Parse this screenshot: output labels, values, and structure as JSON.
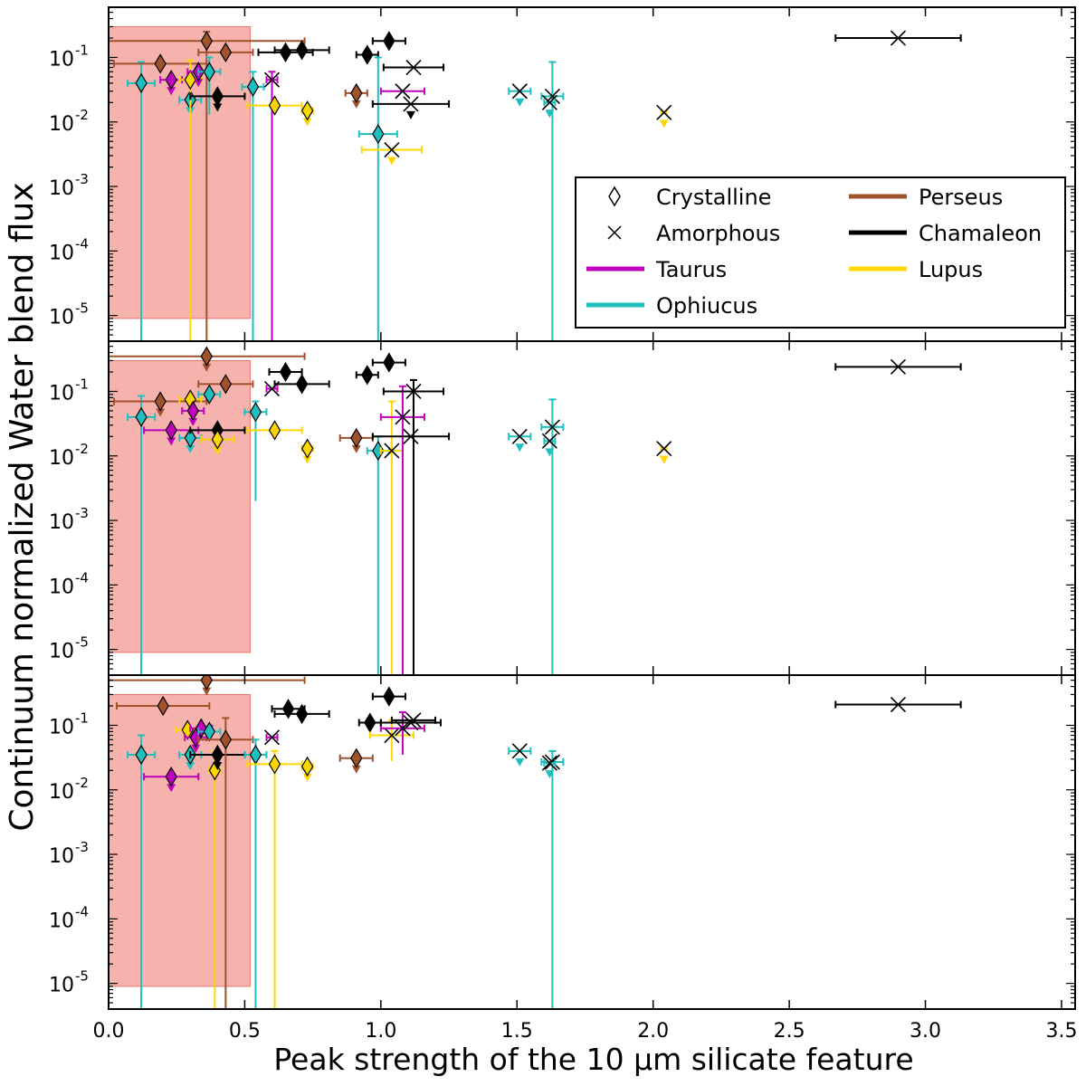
{
  "chart_data": {
    "type": "scatter",
    "xlabel": "Peak strength of the 10 μm silicate feature",
    "ylabel": "Continuum normalized Water blend flux",
    "xlim": [
      0,
      3.55
    ],
    "ylim": [
      4e-06,
      0.6
    ],
    "yscale": "log",
    "x_ticks": [
      0.0,
      0.5,
      1.0,
      1.5,
      2.0,
      2.5,
      3.0,
      3.5
    ],
    "x_tick_labels": [
      "0.0",
      "0.5",
      "1.0",
      "1.5",
      "2.0",
      "2.5",
      "3.0",
      "3.5"
    ],
    "y_ticks": [
      1e-05,
      0.0001,
      0.001,
      0.01,
      0.1
    ],
    "y_tick_labels": [
      "10",
      "10",
      "10",
      "10",
      "10"
    ],
    "y_tick_exponents": [
      "-5",
      "-4",
      "-3",
      "-2",
      "-1"
    ],
    "legend": {
      "placement": "right",
      "entries": [
        {
          "label": "Crystalline",
          "marker": "diamond"
        },
        {
          "label": "Perseus",
          "color": "#a0522d"
        },
        {
          "label": "Amorphous",
          "marker": "x"
        },
        {
          "label": "Chamaleon",
          "color": "#000000"
        },
        {
          "label": "Taurus",
          "color": "#bf00bf"
        },
        {
          "label": "Lupus",
          "color": "#ffd700"
        },
        {
          "label": "Ophiucus",
          "color": "#1fbfbf"
        }
      ]
    },
    "colors": {
      "Perseus": "#a0522d",
      "Chamaleon": "#000000",
      "Taurus": "#bf00bf",
      "Lupus": "#ffd700",
      "Ophiucus": "#1fbfbf",
      "shaded_region": "#f4a09a"
    },
    "shaded_region": {
      "x": [
        0,
        0.52
      ],
      "y": [
        9e-06,
        0.3
      ]
    },
    "panels": [
      {
        "points": [
          {
            "region": "Ophiucus",
            "marker": "diamond",
            "x": 0.12,
            "y": 0.04,
            "xerr": 0.05,
            "ylo": 4e-06,
            "yhi": 0.085,
            "upper": false
          },
          {
            "region": "Perseus",
            "marker": "diamond",
            "x": 0.19,
            "y": 0.08,
            "xerr": 0.17,
            "upper": false
          },
          {
            "region": "Taurus",
            "marker": "diamond",
            "x": 0.23,
            "y": 0.045,
            "xerr": 0.04,
            "upper": true
          },
          {
            "region": "Ophiucus",
            "marker": "diamond",
            "x": 0.3,
            "y": 0.022,
            "xerr": 0.04,
            "upper": true
          },
          {
            "region": "Lupus",
            "marker": "diamond",
            "x": 0.3,
            "y": 0.045,
            "xerr": 0.04,
            "ylo": 4e-06,
            "yhi": 0.09,
            "upper": false
          },
          {
            "region": "Taurus",
            "marker": "diamond",
            "x": 0.33,
            "y": 0.06,
            "xerr": 0.04,
            "upper": true
          },
          {
            "region": "Perseus",
            "marker": "diamond",
            "x": 0.36,
            "y": 0.18,
            "xerr": 0.36,
            "ylo": 4e-06,
            "yhi": 0.25,
            "upper": false
          },
          {
            "region": "Ophiucus",
            "marker": "diamond",
            "x": 0.37,
            "y": 0.06,
            "xerr": 0.04,
            "ylo": 0.013,
            "yhi": 0.1,
            "upper": false
          },
          {
            "region": "Chamaleon",
            "marker": "diamond",
            "x": 0.4,
            "y": 0.025,
            "xerr": 0.1,
            "upper": true
          },
          {
            "region": "Perseus",
            "marker": "diamond",
            "x": 0.43,
            "y": 0.12,
            "xerr": 0.1,
            "upper": false
          },
          {
            "region": "Ophiucus",
            "marker": "diamond",
            "x": 0.53,
            "y": 0.035,
            "xerr": 0.04,
            "ylo": 4e-06,
            "yhi": 0.06,
            "upper": false
          },
          {
            "region": "Taurus",
            "marker": "x",
            "x": 0.6,
            "y": 0.045,
            "xerr": 0.02,
            "ylo": 4e-06,
            "yhi": 0.06,
            "upper": false
          },
          {
            "region": "Lupus",
            "marker": "diamond",
            "x": 0.61,
            "y": 0.018,
            "xerr": 0.1,
            "upper": false
          },
          {
            "region": "Chamaleon",
            "marker": "diamond",
            "x": 0.65,
            "y": 0.12,
            "xerr": 0.1,
            "upper": false
          },
          {
            "region": "Chamaleon",
            "marker": "diamond",
            "x": 0.71,
            "y": 0.13,
            "xerr": 0.1,
            "upper": false
          },
          {
            "region": "Lupus",
            "marker": "diamond",
            "x": 0.73,
            "y": 0.015,
            "xerr": 0.02,
            "upper": true
          },
          {
            "region": "Perseus",
            "marker": "diamond",
            "x": 0.91,
            "y": 0.028,
            "xerr": 0.04,
            "upper": true
          },
          {
            "region": "Chamaleon",
            "marker": "diamond",
            "x": 0.95,
            "y": 0.11,
            "xerr": 0.04,
            "upper": false
          },
          {
            "region": "Ophiucus",
            "marker": "diamond",
            "x": 0.99,
            "y": 0.0065,
            "xerr": 0.07,
            "ylo": 4e-06,
            "yhi": 0.1,
            "upper": false
          },
          {
            "region": "Chamaleon",
            "marker": "diamond",
            "x": 1.03,
            "y": 0.18,
            "xerr": 0.06,
            "upper": false
          },
          {
            "region": "Lupus",
            "marker": "x",
            "x": 1.04,
            "y": 0.0037,
            "xerr": 0.11,
            "upper": true
          },
          {
            "region": "Taurus",
            "marker": "x",
            "x": 1.08,
            "y": 0.03,
            "xerr": 0.08,
            "upper": false
          },
          {
            "region": "Chamaleon",
            "marker": "x",
            "x": 1.12,
            "y": 0.07,
            "xerr": 0.11,
            "upper": false
          },
          {
            "region": "Chamaleon",
            "marker": "x",
            "x": 1.11,
            "y": 0.019,
            "xerr": 0.14,
            "upper": true
          },
          {
            "region": "Ophiucus",
            "marker": "x",
            "x": 1.51,
            "y": 0.03,
            "xerr": 0.04,
            "upper": true
          },
          {
            "region": "Ophiucus",
            "marker": "x",
            "x": 1.63,
            "y": 0.025,
            "xerr": 0.04,
            "ylo": 4e-06,
            "yhi": 0.085,
            "upper": false
          },
          {
            "region": "Ophiucus",
            "marker": "x",
            "x": 1.62,
            "y": 0.02,
            "xerr": 0.02,
            "upper": true
          },
          {
            "region": "Lupus",
            "marker": "x",
            "x": 2.04,
            "y": 0.014,
            "xerr": 0.01,
            "upper": true
          },
          {
            "region": "Chamaleon",
            "marker": "x",
            "x": 2.9,
            "y": 0.2,
            "xerr": 0.23,
            "upper": false
          }
        ]
      },
      {
        "points": [
          {
            "region": "Ophiucus",
            "marker": "diamond",
            "x": 0.12,
            "y": 0.04,
            "xerr": 0.05,
            "ylo": 4e-06,
            "yhi": 0.085,
            "upper": false
          },
          {
            "region": "Perseus",
            "marker": "diamond",
            "x": 0.19,
            "y": 0.07,
            "xerr": 0.17,
            "upper": true
          },
          {
            "region": "Taurus",
            "marker": "diamond",
            "x": 0.23,
            "y": 0.025,
            "xerr": 0.1,
            "upper": true
          },
          {
            "region": "Ophiucus",
            "marker": "diamond",
            "x": 0.3,
            "y": 0.019,
            "xerr": 0.04,
            "upper": true
          },
          {
            "region": "Lupus",
            "marker": "diamond",
            "x": 0.3,
            "y": 0.075,
            "xerr": 0.04,
            "upper": false
          },
          {
            "region": "Taurus",
            "marker": "diamond",
            "x": 0.31,
            "y": 0.05,
            "xerr": 0.04,
            "upper": true
          },
          {
            "region": "Perseus",
            "marker": "diamond",
            "x": 0.36,
            "y": 0.35,
            "xerr": 0.36,
            "upper": true
          },
          {
            "region": "Ophiucus",
            "marker": "diamond",
            "x": 0.37,
            "y": 0.09,
            "xerr": 0.04,
            "upper": false
          },
          {
            "region": "Chamaleon",
            "marker": "diamond",
            "x": 0.4,
            "y": 0.025,
            "xerr": 0.1,
            "upper": true
          },
          {
            "region": "Lupus",
            "marker": "diamond",
            "x": 0.4,
            "y": 0.018,
            "xerr": 0.06,
            "upper": true
          },
          {
            "region": "Perseus",
            "marker": "diamond",
            "x": 0.43,
            "y": 0.13,
            "xerr": 0.1,
            "upper": false
          },
          {
            "region": "Ophiucus",
            "marker": "diamond",
            "x": 0.54,
            "y": 0.048,
            "xerr": 0.04,
            "ylo": 0.002,
            "yhi": 0.07,
            "upper": false
          },
          {
            "region": "Taurus",
            "marker": "x",
            "x": 0.6,
            "y": 0.11,
            "xerr": 0.02,
            "upper": false
          },
          {
            "region": "Lupus",
            "marker": "diamond",
            "x": 0.61,
            "y": 0.025,
            "xerr": 0.1,
            "upper": false
          },
          {
            "region": "Chamaleon",
            "marker": "diamond",
            "x": 0.65,
            "y": 0.2,
            "xerr": 0.06,
            "upper": false
          },
          {
            "region": "Chamaleon",
            "marker": "diamond",
            "x": 0.71,
            "y": 0.13,
            "xerr": 0.1,
            "upper": false
          },
          {
            "region": "Lupus",
            "marker": "diamond",
            "x": 0.73,
            "y": 0.013,
            "xerr": 0.02,
            "upper": true
          },
          {
            "region": "Perseus",
            "marker": "diamond",
            "x": 0.91,
            "y": 0.019,
            "xerr": 0.06,
            "upper": true
          },
          {
            "region": "Chamaleon",
            "marker": "diamond",
            "x": 0.95,
            "y": 0.18,
            "xerr": 0.04,
            "upper": false
          },
          {
            "region": "Ophiucus",
            "marker": "diamond",
            "x": 0.99,
            "y": 0.012,
            "xerr": 0.04,
            "ylo": 4e-06,
            "yhi": 0.02,
            "upper": false
          },
          {
            "region": "Chamaleon",
            "marker": "diamond",
            "x": 1.03,
            "y": 0.28,
            "xerr": 0.06,
            "upper": false
          },
          {
            "region": "Lupus",
            "marker": "x",
            "x": 1.04,
            "y": 0.012,
            "xerr": 0.04,
            "ylo": 4e-06,
            "yhi": 0.07,
            "upper": false
          },
          {
            "region": "Taurus",
            "marker": "x",
            "x": 1.08,
            "y": 0.04,
            "xerr": 0.08,
            "ylo": 4e-06,
            "yhi": 0.12,
            "upper": false
          },
          {
            "region": "Chamaleon",
            "marker": "x",
            "x": 1.12,
            "y": 0.1,
            "xerr": 0.11,
            "ylo": 4e-06,
            "yhi": 0.15,
            "upper": false
          },
          {
            "region": "Chamaleon",
            "marker": "x",
            "x": 1.11,
            "y": 0.02,
            "xerr": 0.14,
            "upper": false
          },
          {
            "region": "Ophiucus",
            "marker": "x",
            "x": 1.51,
            "y": 0.02,
            "xerr": 0.04,
            "upper": true
          },
          {
            "region": "Ophiucus",
            "marker": "x",
            "x": 1.63,
            "y": 0.028,
            "xerr": 0.04,
            "ylo": 4e-06,
            "yhi": 0.075,
            "upper": false
          },
          {
            "region": "Ophiucus",
            "marker": "x",
            "x": 1.62,
            "y": 0.017,
            "xerr": 0.02,
            "upper": true
          },
          {
            "region": "Lupus",
            "marker": "x",
            "x": 2.04,
            "y": 0.013,
            "xerr": 0.01,
            "upper": true
          },
          {
            "region": "Chamaleon",
            "marker": "x",
            "x": 2.9,
            "y": 0.24,
            "xerr": 0.23,
            "upper": false
          }
        ]
      },
      {
        "points": [
          {
            "region": "Ophiucus",
            "marker": "diamond",
            "x": 0.12,
            "y": 0.035,
            "xerr": 0.05,
            "ylo": 4e-06,
            "yhi": 0.07,
            "upper": false
          },
          {
            "region": "Perseus",
            "marker": "diamond",
            "x": 0.2,
            "y": 0.2,
            "xerr": 0.17,
            "upper": false
          },
          {
            "region": "Taurus",
            "marker": "diamond",
            "x": 0.23,
            "y": 0.016,
            "xerr": 0.1,
            "upper": true
          },
          {
            "region": "Ophiucus",
            "marker": "diamond",
            "x": 0.3,
            "y": 0.035,
            "xerr": 0.04,
            "upper": true
          },
          {
            "region": "Lupus",
            "marker": "diamond",
            "x": 0.29,
            "y": 0.085,
            "xerr": 0.04,
            "upper": false
          },
          {
            "region": "Taurus",
            "marker": "diamond",
            "x": 0.32,
            "y": 0.065,
            "xerr": 0.04,
            "upper": true
          },
          {
            "region": "Taurus",
            "marker": "diamond",
            "x": 0.34,
            "y": 0.09,
            "xerr": 0.04,
            "upper": false
          },
          {
            "region": "Perseus",
            "marker": "diamond",
            "x": 0.36,
            "y": 0.5,
            "xerr": 0.36,
            "upper": true
          },
          {
            "region": "Ophiucus",
            "marker": "diamond",
            "x": 0.37,
            "y": 0.08,
            "xerr": 0.04,
            "upper": false
          },
          {
            "region": "Lupus",
            "marker": "diamond",
            "x": 0.39,
            "y": 0.02,
            "xerr": 0.02,
            "ylo": 4e-06,
            "yhi": 0.04,
            "upper": false
          },
          {
            "region": "Chamaleon",
            "marker": "diamond",
            "x": 0.4,
            "y": 0.035,
            "xerr": 0.1,
            "upper": true
          },
          {
            "region": "Perseus",
            "marker": "diamond",
            "x": 0.43,
            "y": 0.06,
            "xerr": 0.1,
            "ylo": 4e-06,
            "yhi": 0.13,
            "upper": false
          },
          {
            "region": "Ophiucus",
            "marker": "diamond",
            "x": 0.54,
            "y": 0.035,
            "xerr": 0.04,
            "ylo": 4e-06,
            "yhi": 0.06,
            "upper": false
          },
          {
            "region": "Taurus",
            "marker": "x",
            "x": 0.6,
            "y": 0.065,
            "xerr": 0.02,
            "upper": false
          },
          {
            "region": "Lupus",
            "marker": "diamond",
            "x": 0.61,
            "y": 0.025,
            "xerr": 0.1,
            "ylo": 4e-06,
            "yhi": 0.04,
            "upper": false
          },
          {
            "region": "Chamaleon",
            "marker": "diamond",
            "x": 0.66,
            "y": 0.18,
            "xerr": 0.06,
            "upper": false
          },
          {
            "region": "Chamaleon",
            "marker": "diamond",
            "x": 0.71,
            "y": 0.15,
            "xerr": 0.1,
            "upper": false
          },
          {
            "region": "Lupus",
            "marker": "diamond",
            "x": 0.73,
            "y": 0.023,
            "xerr": 0.02,
            "upper": true
          },
          {
            "region": "Perseus",
            "marker": "diamond",
            "x": 0.91,
            "y": 0.031,
            "xerr": 0.06,
            "upper": true
          },
          {
            "region": "Chamaleon",
            "marker": "diamond",
            "x": 0.96,
            "y": 0.11,
            "xerr": 0.04,
            "upper": false
          },
          {
            "region": "Chamaleon",
            "marker": "diamond",
            "x": 1.03,
            "y": 0.28,
            "xerr": 0.06,
            "upper": false
          },
          {
            "region": "Lupus",
            "marker": "x",
            "x": 1.04,
            "y": 0.07,
            "xerr": 0.08,
            "ylo": 0.028,
            "yhi": 0.12,
            "upper": false
          },
          {
            "region": "Taurus",
            "marker": "x",
            "x": 1.08,
            "y": 0.09,
            "xerr": 0.08,
            "ylo": 0.035,
            "yhi": 0.16,
            "upper": false
          },
          {
            "region": "Chamaleon",
            "marker": "x",
            "x": 1.11,
            "y": 0.11,
            "xerr": 0.11,
            "upper": false
          },
          {
            "region": "Chamaleon",
            "marker": "x",
            "x": 1.12,
            "y": 0.12,
            "xerr": 0.08,
            "upper": false
          },
          {
            "region": "Ophiucus",
            "marker": "x",
            "x": 1.51,
            "y": 0.04,
            "xerr": 0.04,
            "upper": true
          },
          {
            "region": "Ophiucus",
            "marker": "x",
            "x": 1.63,
            "y": 0.027,
            "xerr": 0.04,
            "ylo": 4e-06,
            "yhi": 0.04,
            "upper": false
          },
          {
            "region": "Ophiucus",
            "marker": "x",
            "x": 1.62,
            "y": 0.026,
            "xerr": 0.02,
            "upper": true
          },
          {
            "region": "Chamaleon",
            "marker": "x",
            "x": 2.9,
            "y": 0.21,
            "xerr": 0.23,
            "upper": false
          }
        ]
      }
    ]
  }
}
